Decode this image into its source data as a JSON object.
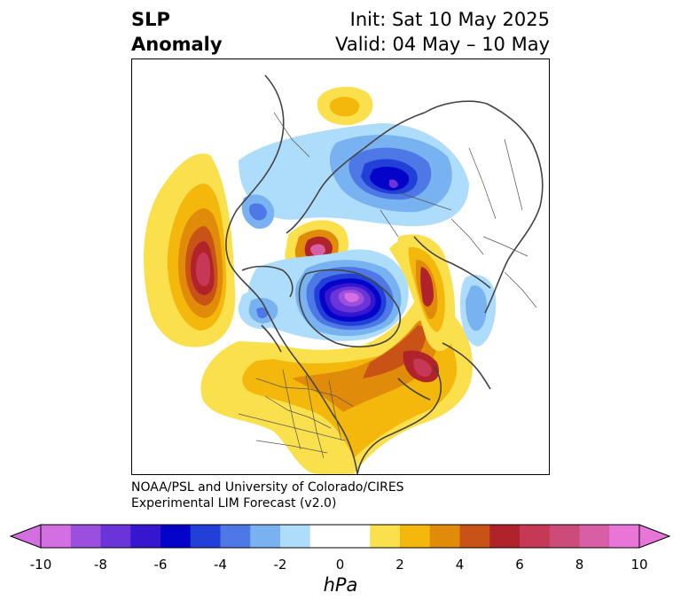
{
  "header": {
    "title_line1": "SLP",
    "title_line2": "Anomaly",
    "init": "Init: Sat 10 May 2025",
    "valid": "Valid: 04 May – 10 May"
  },
  "credit": {
    "line1": "NOAA/PSL and University of Colorado/CIRES",
    "line2": "Experimental LIM Forecast (v2.0)"
  },
  "colorbar": {
    "unit": "hPa",
    "tick_labels": [
      "-10",
      "-8",
      "-6",
      "-4",
      "-2",
      "0",
      "2",
      "4",
      "6",
      "8",
      "10"
    ],
    "levels": [
      -10,
      -9,
      -8,
      -7,
      -6,
      -5,
      -4,
      -3,
      -2,
      -1,
      1,
      2,
      3,
      4,
      5,
      6,
      7,
      8,
      9,
      10
    ],
    "colors": [
      "#d36fe0",
      "#9c4fdc",
      "#6a34d8",
      "#3617cf",
      "#0303c9",
      "#2240d8",
      "#4d78e6",
      "#79b2f1",
      "#aedcfb",
      "#ffffff",
      "#fbe04e",
      "#f3b80b",
      "#e08c0a",
      "#c95316",
      "#b0232a",
      "#c63855",
      "#cd4b78",
      "#d85ea6",
      "#e776d8"
    ],
    "under_color": "#d36fe0",
    "over_color": "#e776d8"
  },
  "map": {
    "projection": "north polar stereographic",
    "field": "sea level pressure anomaly"
  }
}
